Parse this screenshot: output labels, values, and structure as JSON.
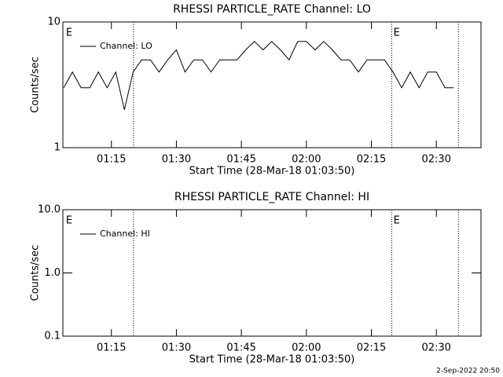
{
  "chart_data": [
    {
      "type": "line",
      "title": "RHESSI PARTICLE_RATE Channel: LO",
      "xlabel": "Start Time (28-Mar-18 01:03:50)",
      "ylabel": "Counts/sec",
      "x": [
        64,
        66,
        68,
        70,
        72,
        74,
        76,
        78,
        80,
        82,
        84,
        86,
        88,
        90,
        92,
        94,
        96,
        98,
        100,
        102,
        104,
        106,
        108,
        110,
        112,
        114,
        116,
        118,
        120,
        122,
        124,
        126,
        128,
        130,
        132,
        134,
        136,
        138,
        140,
        142,
        144,
        146,
        148,
        150,
        152,
        154
      ],
      "series": [
        {
          "name": "Channel: LO",
          "color": "#000000",
          "values": [
            3,
            4,
            3,
            3,
            4,
            3,
            4,
            2,
            4,
            5,
            5,
            4,
            5,
            6,
            4,
            5,
            5,
            4,
            5,
            5,
            5,
            6,
            7,
            6,
            7,
            6,
            5,
            7,
            7,
            6,
            7,
            6,
            5,
            5,
            4,
            5,
            5,
            5,
            4,
            3,
            4,
            3,
            4,
            4,
            3,
            3
          ]
        }
      ],
      "xlim": [
        63.8,
        160.3
      ],
      "xticks": [
        {
          "value": 75,
          "label": "01:15"
        },
        {
          "value": 90,
          "label": "01:30"
        },
        {
          "value": 105,
          "label": "01:45"
        },
        {
          "value": 120,
          "label": "02:00"
        },
        {
          "value": 135,
          "label": "02:15"
        },
        {
          "value": 150,
          "label": "02:30"
        }
      ],
      "ylim": [
        1,
        10
      ],
      "yticks": [
        1,
        10
      ],
      "log_y": true,
      "markers": [
        80.1,
        139.7,
        155.1
      ],
      "annotations": [
        {
          "text": "E",
          "x": 64.5
        },
        {
          "text": "E",
          "x": 140.1
        }
      ],
      "legend": "upper left"
    },
    {
      "type": "line",
      "title": "RHESSI PARTICLE_RATE Channel: HI",
      "xlabel": "Start Time (28-Mar-18 01:03:50)",
      "ylabel": "Counts/sec",
      "x": [],
      "series": [
        {
          "name": "Channel: HI",
          "color": "#000000",
          "values": []
        }
      ],
      "xlim": [
        63.8,
        160.3
      ],
      "xticks": [
        {
          "value": 75,
          "label": "01:15"
        },
        {
          "value": 90,
          "label": "01:30"
        },
        {
          "value": 105,
          "label": "01:45"
        },
        {
          "value": 120,
          "label": "02:00"
        },
        {
          "value": 135,
          "label": "02:15"
        },
        {
          "value": 150,
          "label": "02:30"
        }
      ],
      "ylim": [
        0.1,
        10
      ],
      "yticks": [
        {
          "value": 0.1,
          "label": "0.1"
        },
        {
          "value": 1,
          "label": "1.0"
        },
        {
          "value": 10,
          "label": "10.0"
        }
      ],
      "log_y": true,
      "markers": [
        80.1,
        139.7,
        155.1
      ],
      "annotations": [
        {
          "text": "E",
          "x": 64.5
        },
        {
          "text": "E",
          "x": 140.1
        }
      ],
      "legend": "upper left"
    }
  ],
  "footer_text": "2-Sep-2022 20:50"
}
